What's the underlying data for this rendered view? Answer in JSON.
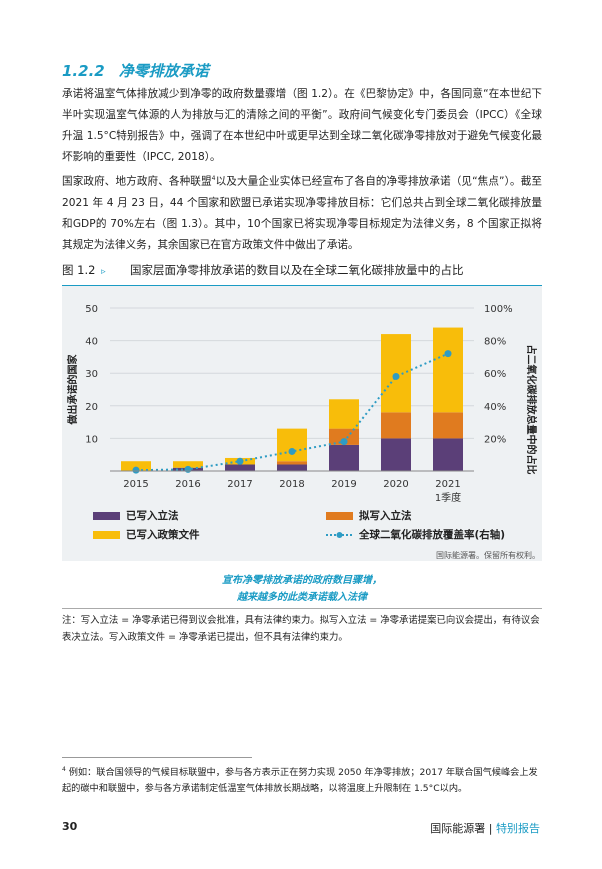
{
  "section": {
    "number": "1.2.2",
    "title": "净零排放承诺"
  },
  "paragraphs": [
    "承诺将温室气体排放减少到净零的政府数量骤增（图 1.2）。在《巴黎协定》中，各国同意“在本世纪下半叶实现温室气体源的人为排放与汇的清除之间的平衡”。政府间气候变化专门委员会（IPCC）《全球升温 1.5°C特别报告》中，强调了在本世纪中叶或更早达到全球二氧化碳净零排放对于避免气候变化最坏影响的重要性（IPCC, 2018）。",
    {
      "before": "国家政府、地方政府、各种联盟",
      "sup": "4",
      "after": "以及大量企业实体已经宣布了各自的净零排放承诺（见“焦点”）。截至 2021 年 4 月 23 日，44 个国家和欧盟已承诺实现净零排放目标：它们总共占到全球二氧化碳排放量和GDP的 70%左右（图 1.3）。其中，10个国家已将实现净零目标规定为法律义务，8 个国家正拟将其规定为法律义务，其余国家已在官方政策文件中做出了承诺。"
    }
  ],
  "figure": {
    "label": "图 1.2",
    "marker": "▹",
    "title": "国家层面净零排放承诺的数目以及在全球二氧化碳排放量中的占比",
    "source": "国际能源署。保留所有权利。",
    "callout_line1": "宣布净零排放承诺的政府数目骤增，",
    "callout_line2": "越来越多的此类承诺载入法律"
  },
  "chart_data": {
    "type": "bar",
    "stacked": true,
    "categories": [
      "2015",
      "2016",
      "2017",
      "2018",
      "2019",
      "2020",
      "2021"
    ],
    "category_sublabels": [
      "",
      "",
      "",
      "",
      "",
      "",
      "1季度"
    ],
    "series": [
      {
        "name": "已写入立法",
        "values": [
          0,
          1,
          2,
          2,
          8,
          10,
          10
        ]
      },
      {
        "name": "拟写入立法",
        "values": [
          0,
          0,
          0,
          1,
          5,
          8,
          8
        ]
      },
      {
        "name": "已写入政策文件",
        "values": [
          3,
          2,
          2,
          10,
          9,
          24,
          26
        ]
      }
    ],
    "line_series": {
      "name": "全球二氧化碳排放覆盖率(右轴)",
      "values": [
        0.5,
        1,
        6,
        12,
        18,
        58,
        72
      ],
      "axis": "right"
    },
    "ylabel_left": "做出承诺的国家",
    "ylabel_right": "占二氧化碳排放总量中的占比",
    "ylim_left": [
      0,
      50
    ],
    "ylim_right": [
      0,
      100
    ],
    "left_ticks": [
      10,
      20,
      30,
      40,
      50
    ],
    "right_ticks": [
      "20%",
      "40%",
      "60%",
      "80%",
      "100%"
    ],
    "colors": [
      "#5b3f78",
      "#e07b1f",
      "#f8bd0a"
    ],
    "line_color": "#2e9cc4"
  },
  "note": "注：写入立法 = 净零承诺已得到议会批准，具有法律约束力。拟写入立法 = 净零承诺提案已向议会提出，有待议会表决立法。写入政策文件 = 净零承诺已提出，但不具有法律约束力。",
  "footnote": {
    "sup": "4",
    "text": "例如：联合国领导的气候目标联盟中，参与各方表示正在努力实现 2050 年净零排放；2017 年联合国气候峰会上发起的碳中和联盟中，参与各方承诺制定低温室气体排放长期战略，以将温度上升限制在 1.5°C以内。"
  },
  "footer": {
    "page_number": "30",
    "org": "国际能源署",
    "separator": "|",
    "report": "特别报告"
  }
}
